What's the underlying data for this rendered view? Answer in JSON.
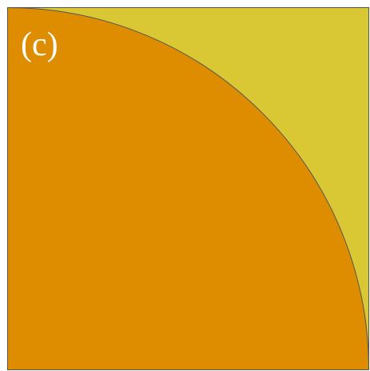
{
  "panel": {
    "label": "(c)"
  },
  "colors": {
    "background": "#d9c834",
    "quarter_disc": "#de8d00",
    "outline": "#555555"
  },
  "shapes": {
    "background": "square",
    "foreground": "quarter-circle"
  }
}
